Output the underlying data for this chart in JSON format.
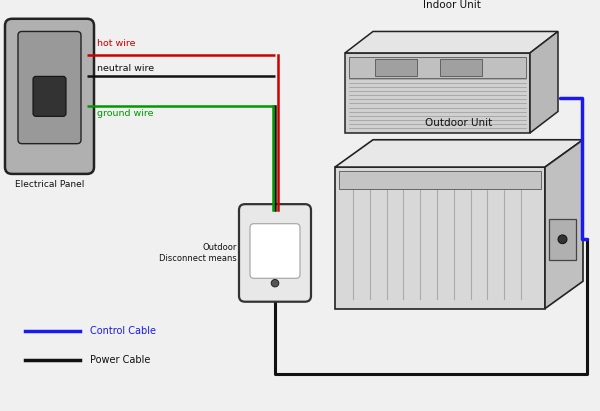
{
  "background_color": "#f0f0f0",
  "labels": {
    "electrical_panel": "Electrical Panel",
    "indoor_unit": "Indoor Unit",
    "outdoor_unit": "Outdoor Unit",
    "outdoor_disconnect": "Outdoor\nDisconnect means",
    "hot_wire": "hot wire",
    "neutral_wire": "neutral wire",
    "ground_wire": "ground wire",
    "control_cable": "Control Cable",
    "power_cable": "Power Cable"
  },
  "colors": {
    "hot_wire": "#cc0000",
    "neutral_wire": "#111111",
    "ground_wire": "#009900",
    "control_cable": "#1a1aee",
    "power_cable": "#111111",
    "panel_fill": "#b0b0b0",
    "panel_inner": "#999999",
    "panel_stroke": "#222222",
    "breaker": "#333333",
    "disc_fill": "#e8e8e8",
    "disc_stroke": "#333333",
    "disc_inner_fill": "#ffffff",
    "ac_front": "#d4d4d4",
    "ac_top": "#e8e8e8",
    "ac_side": "#bbbbbb",
    "ac_stroke": "#222222",
    "grille_line": "#888888",
    "text_hot": "#cc0000",
    "text_neutral": "#111111",
    "text_green": "#009900",
    "text_blue": "#1a1aee",
    "text_black": "#111111"
  },
  "figsize": [
    6.0,
    4.11
  ],
  "dpi": 100,
  "xlim": [
    0,
    6.0
  ],
  "ylim": [
    0,
    4.11
  ]
}
